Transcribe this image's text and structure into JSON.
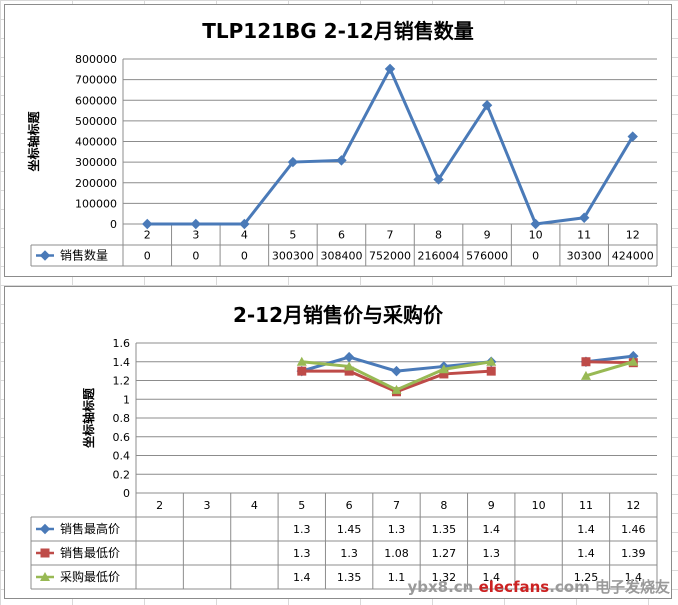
{
  "chart_data": [
    {
      "type": "line",
      "title": "TLP121BG  2-12月销售数量",
      "ylabel": "坐标轴标题",
      "ylim": [
        0,
        800000
      ],
      "yticks": [
        "0",
        "100000",
        "200000",
        "300000",
        "400000",
        "500000",
        "600000",
        "700000",
        "800000"
      ],
      "categories": [
        "2",
        "3",
        "4",
        "5",
        "6",
        "7",
        "8",
        "9",
        "10",
        "11",
        "12"
      ],
      "grid": "horizontal",
      "legend": "data-table",
      "series": [
        {
          "name": "销售数量",
          "color": "#4a7ab8",
          "marker": "diamond",
          "values": [
            0,
            0,
            0,
            300300,
            308400,
            752000,
            216004,
            576000,
            0,
            30300,
            424000
          ],
          "labels": [
            "0",
            "0",
            "0",
            "300300",
            "308400",
            "752000",
            "216004",
            "576000",
            "0",
            "30300",
            "424000"
          ]
        }
      ]
    },
    {
      "type": "line",
      "title": "2-12月销售价与采购价",
      "ylabel": "坐标轴标题",
      "ylim": [
        0,
        1.6
      ],
      "yticks": [
        "0",
        "0.2",
        "0.4",
        "0.6",
        "0.8",
        "1",
        "1.2",
        "1.4",
        "1.6"
      ],
      "categories": [
        "2",
        "3",
        "4",
        "5",
        "6",
        "7",
        "8",
        "9",
        "10",
        "11",
        "12"
      ],
      "grid": "horizontal",
      "legend": "data-table",
      "series": [
        {
          "name": "销售最高价",
          "color": "#4a7ab8",
          "marker": "diamond",
          "values": [
            null,
            null,
            null,
            1.3,
            1.45,
            1.3,
            1.35,
            1.4,
            null,
            1.4,
            1.46
          ],
          "labels": [
            "",
            "",
            "",
            "1.3",
            "1.45",
            "1.3",
            "1.35",
            "1.4",
            "",
            "1.4",
            "1.46"
          ]
        },
        {
          "name": "销售最低价",
          "color": "#be4b48",
          "marker": "square",
          "values": [
            null,
            null,
            null,
            1.3,
            1.3,
            1.08,
            1.27,
            1.3,
            null,
            1.4,
            1.39
          ],
          "labels": [
            "",
            "",
            "",
            "1.3",
            "1.3",
            "1.08",
            "1.27",
            "1.3",
            "",
            "1.4",
            "1.39"
          ]
        },
        {
          "name": "采购最低价",
          "color": "#98b954",
          "marker": "triangle",
          "values": [
            null,
            null,
            null,
            1.4,
            1.35,
            1.1,
            1.32,
            1.4,
            null,
            1.25,
            1.4
          ],
          "labels": [
            "",
            "",
            "",
            "1.4",
            "1.35",
            "1.1",
            "1.32",
            "1.4",
            "",
            "1.25",
            "1.4"
          ]
        }
      ]
    }
  ],
  "watermark": {
    "brand": "elecfans",
    "brand_suffix": ".com",
    "prefix": "ybx8.cn",
    "chinese": "电子发烧友"
  }
}
